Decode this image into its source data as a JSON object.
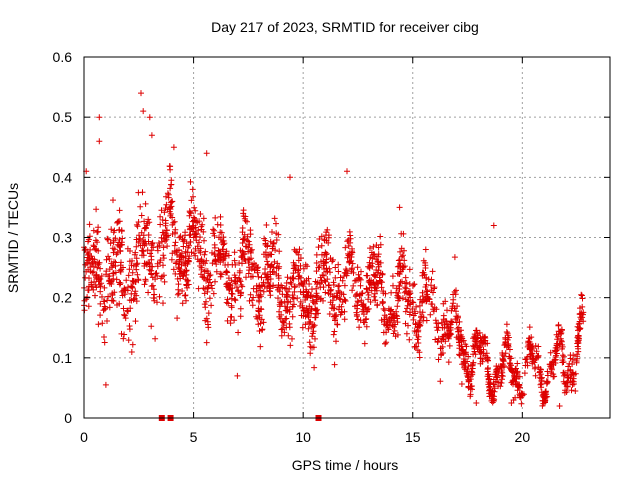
{
  "chart_data": {
    "type": "scatter",
    "title": "Day 217 of 2023, SRMTID for receiver cibg",
    "xlabel": "GPS time / hours",
    "ylabel": "SRMTID / TECUs",
    "xlim": [
      0,
      24
    ],
    "ylim": [
      0,
      0.6
    ],
    "xticks": [
      0,
      5,
      10,
      15,
      20
    ],
    "xtick_labels": [
      "0",
      "5",
      "10",
      "15",
      "20"
    ],
    "yticks": [
      0,
      0.1,
      0.2,
      0.3,
      0.4,
      0.5,
      0.6
    ],
    "ytick_labels": [
      "0",
      "0.1",
      "0.2",
      "0.3",
      "0.4",
      "0.5",
      "0.6"
    ],
    "grid": true,
    "marker": "+",
    "series_color": "#dd0000",
    "trend": {
      "name": "SRMTID",
      "x": [
        0,
        1,
        2,
        3,
        4,
        5,
        6,
        7,
        8,
        9,
        10,
        11,
        12,
        13,
        14,
        15,
        16,
        17,
        18,
        19,
        20,
        21,
        22,
        22.8
      ],
      "y": [
        0.22,
        0.24,
        0.23,
        0.27,
        0.3,
        0.28,
        0.25,
        0.24,
        0.24,
        0.23,
        0.2,
        0.22,
        0.22,
        0.22,
        0.19,
        0.2,
        0.17,
        0.14,
        0.09,
        0.08,
        0.08,
        0.08,
        0.09,
        0.14
      ],
      "spread": [
        0.08,
        0.09,
        0.1,
        0.1,
        0.08,
        0.08,
        0.07,
        0.07,
        0.07,
        0.07,
        0.07,
        0.07,
        0.06,
        0.06,
        0.06,
        0.06,
        0.05,
        0.05,
        0.03,
        0.03,
        0.03,
        0.03,
        0.03,
        0.04
      ]
    },
    "highlights": [
      {
        "x": 0.1,
        "y": 0.41
      },
      {
        "x": 0.7,
        "y": 0.5
      },
      {
        "x": 0.7,
        "y": 0.46
      },
      {
        "x": 2.6,
        "y": 0.54
      },
      {
        "x": 2.7,
        "y": 0.51
      },
      {
        "x": 3.0,
        "y": 0.5
      },
      {
        "x": 3.1,
        "y": 0.47
      },
      {
        "x": 4.1,
        "y": 0.45
      },
      {
        "x": 5.6,
        "y": 0.44
      },
      {
        "x": 12.0,
        "y": 0.41
      },
      {
        "x": 14.4,
        "y": 0.35
      },
      {
        "x": 18.7,
        "y": 0.32
      },
      {
        "x": 9.4,
        "y": 0.4
      },
      {
        "x": 7.0,
        "y": 0.07
      },
      {
        "x": 1.0,
        "y": 0.055
      },
      {
        "x": 17.9,
        "y": 0.025
      },
      {
        "x": 21.7,
        "y": 0.02
      },
      {
        "x": 19.5,
        "y": 0.025
      }
    ],
    "zero_markers": [
      {
        "x": 3.55,
        "y": 0
      },
      {
        "x": 3.95,
        "y": 0
      },
      {
        "x": 10.7,
        "y": 0
      }
    ]
  }
}
